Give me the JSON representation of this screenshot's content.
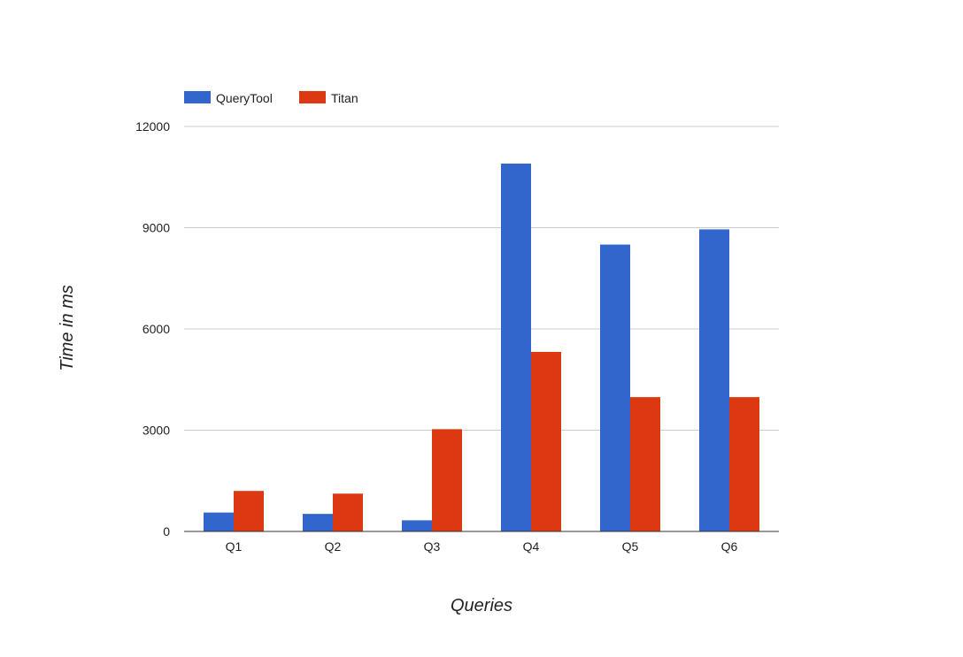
{
  "chart_data": {
    "type": "bar",
    "categories": [
      "Q1",
      "Q2",
      "Q3",
      "Q4",
      "Q5",
      "Q6"
    ],
    "series": [
      {
        "name": "QueryTool",
        "color": "#3366cc",
        "values": [
          560,
          520,
          330,
          10900,
          8500,
          8950
        ]
      },
      {
        "name": "Titan",
        "color": "#dc3912",
        "values": [
          1200,
          1120,
          3030,
          5320,
          3980,
          3980
        ]
      }
    ],
    "title": "",
    "xlabel": "Queries",
    "ylabel": "Time in ms",
    "ylim": [
      0,
      12000
    ],
    "yticks": [
      0,
      3000,
      6000,
      9000,
      12000
    ],
    "ytick_labels": [
      "0",
      "3000",
      "6000",
      "9000",
      "12000"
    ],
    "grid": true,
    "legend_position": "top-left"
  }
}
